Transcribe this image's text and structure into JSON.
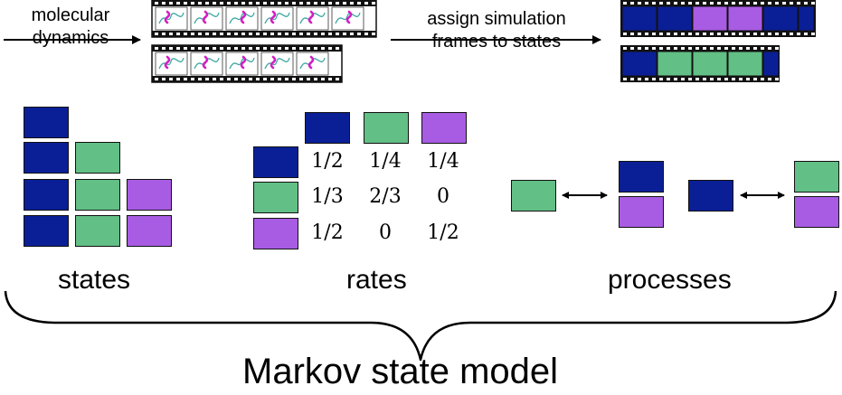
{
  "top": {
    "step1_line1": "molecular",
    "step1_line2": "dynamics",
    "step2_line1": "assign simulation",
    "step2_line2": "frames to states"
  },
  "colors": {
    "blue": "#0a1f96",
    "green": "#62bf85",
    "purple": "#a85ce3"
  },
  "trajectories": [
    [
      "blue",
      "blue",
      "purple",
      "purple",
      "blue",
      "blue"
    ],
    [
      "blue",
      "green",
      "green",
      "green",
      "blue"
    ]
  ],
  "states_label": "states",
  "rates": {
    "label": "rates",
    "columns": [
      "blue",
      "green",
      "purple"
    ],
    "rows": [
      {
        "state": "blue",
        "values": [
          "1/2",
          "1/4",
          "1/4"
        ]
      },
      {
        "state": "green",
        "values": [
          "1/3",
          "2/3",
          "0"
        ]
      },
      {
        "state": "purple",
        "values": [
          "1/2",
          "0",
          "1/2"
        ]
      }
    ]
  },
  "processes": {
    "label": "processes",
    "pairs": [
      {
        "left": [
          "green"
        ],
        "right": [
          "blue",
          "purple"
        ]
      },
      {
        "left": [
          "blue"
        ],
        "right": [
          "green",
          "purple"
        ]
      }
    ]
  },
  "footer": {
    "model_label": "Markov state model"
  }
}
